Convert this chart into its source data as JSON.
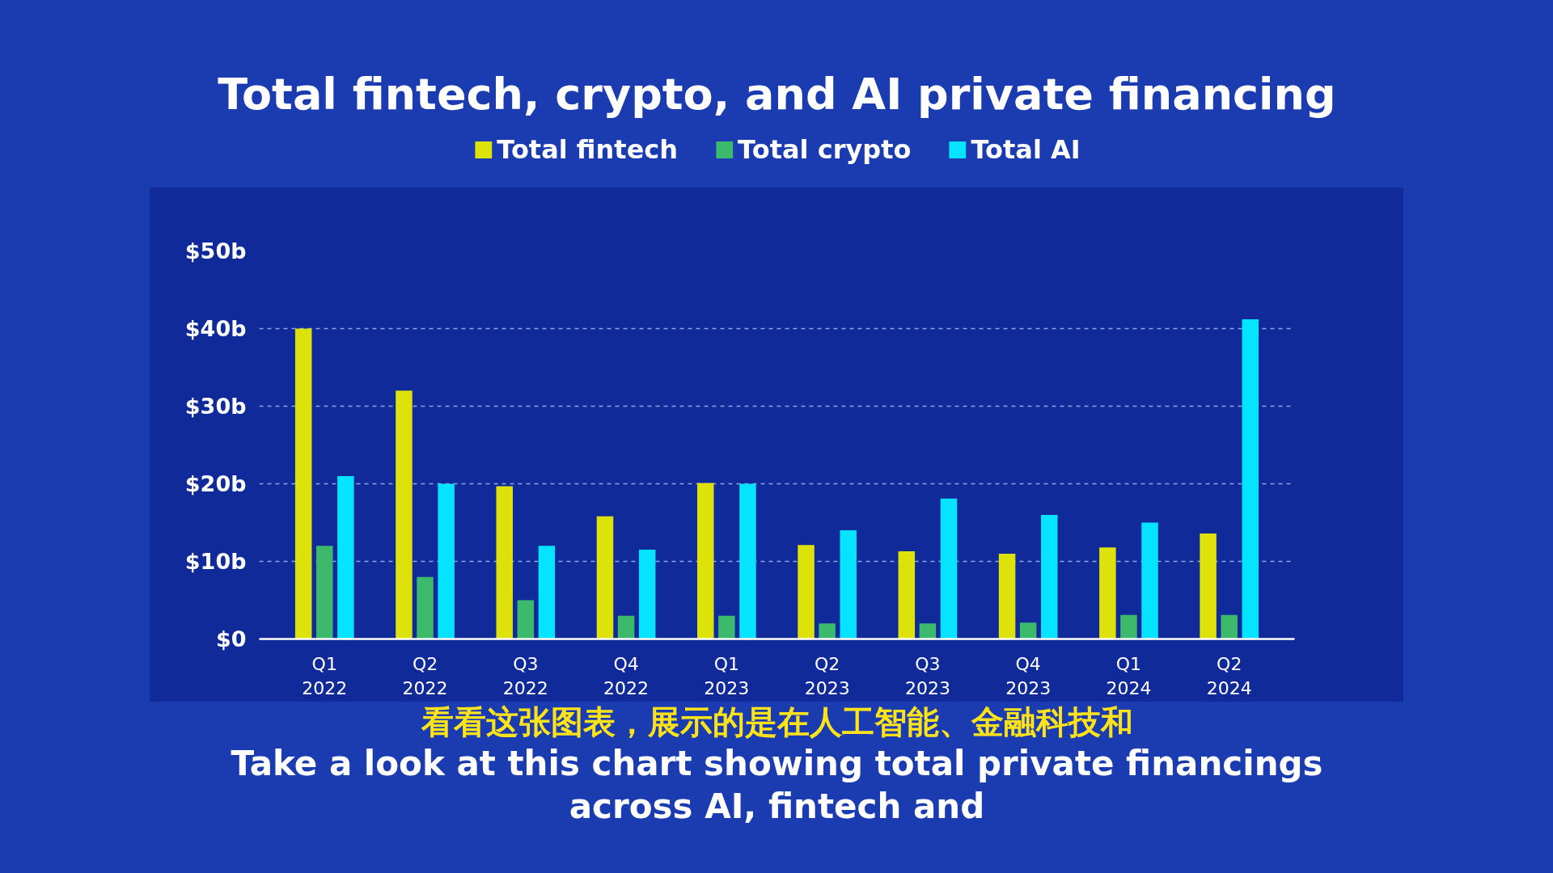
{
  "chart_data": {
    "type": "bar",
    "title": "Total fintech, crypto, and AI private financing",
    "categories": [
      "Q1 2022",
      "Q2 2022",
      "Q3 2022",
      "Q4 2022",
      "Q1 2023",
      "Q2 2023",
      "Q3 2023",
      "Q4 2023",
      "Q1 2024",
      "Q2 2024"
    ],
    "series": [
      {
        "name": "Total fintech",
        "color": "#dee20b",
        "values": [
          40,
          32,
          19.7,
          15.8,
          20.1,
          12.1,
          11.3,
          11,
          11.8,
          13.6
        ]
      },
      {
        "name": "Total crypto",
        "color": "#3cb96b",
        "values": [
          12,
          8,
          5,
          3,
          3,
          2,
          2,
          2.1,
          3.1,
          3.1
        ]
      },
      {
        "name": "Total AI",
        "color": "#05e3ff",
        "values": [
          21,
          20,
          12,
          11.5,
          20,
          14,
          18.1,
          16,
          15,
          41.2
        ]
      }
    ],
    "ylim": [
      0,
      50
    ],
    "yticks": [
      {
        "value": 0,
        "label": "$0"
      },
      {
        "value": 10,
        "label": "$10b"
      },
      {
        "value": 20,
        "label": "$20b"
      },
      {
        "value": 30,
        "label": "$30b"
      },
      {
        "value": 40,
        "label": "$40b"
      },
      {
        "value": 50,
        "label": "$50b"
      }
    ],
    "grid": "y",
    "legend": "top",
    "annotations": [
      "看看这张图表，展示的是在人工智能、金融科技和",
      "Take a look at this chart showing total private financings",
      "across AI, fintech and"
    ]
  }
}
